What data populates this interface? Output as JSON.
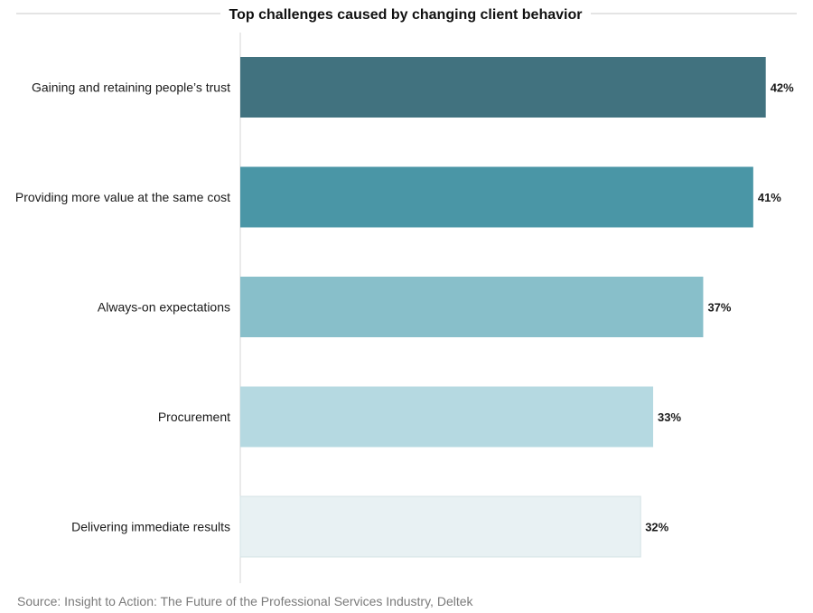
{
  "chart_data": {
    "type": "bar",
    "orientation": "horizontal",
    "title": "Top challenges caused by changing client behavior",
    "categories": [
      "Gaining and retaining people’s trust",
      "Providing more value at the same cost",
      "Always-on expectations",
      "Procurement",
      "Delivering immediate results"
    ],
    "values": [
      42,
      41,
      37,
      33,
      32
    ],
    "value_labels": [
      "42%",
      "41%",
      "37%",
      "33%",
      "32%"
    ],
    "unit": "%",
    "colors": [
      "#41727f",
      "#4a96a6",
      "#88bfca",
      "#b5d9e1",
      "#e8f1f3"
    ],
    "xlim": [
      0,
      45
    ],
    "grid": false,
    "legend": "none"
  },
  "source": "Source: Insight to Action: The Future of the Professional Services Industry, Deltek"
}
